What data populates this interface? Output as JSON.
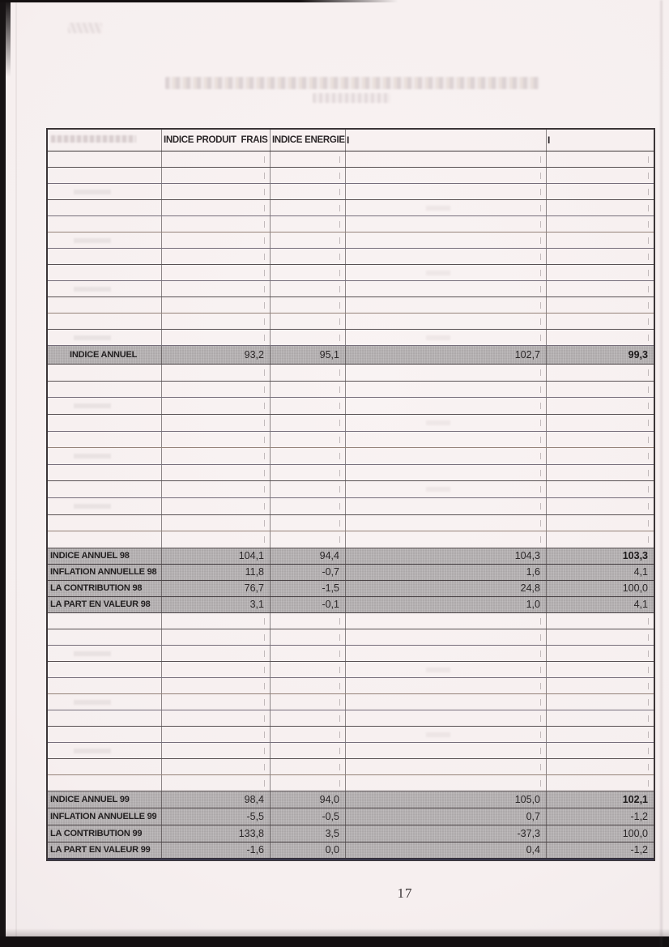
{
  "page": {
    "number": "17"
  },
  "colors": {
    "row_highlight": "#b5b1b2",
    "paper": "#f7f1f1",
    "grid_line": "#3b3537"
  },
  "table": {
    "headers": {
      "col1": "",
      "col2": "INDICE PRODUIT  FRAIS",
      "col3": "INDICE ENERGIE",
      "col4_mark": "I",
      "col5_mark": "I"
    },
    "empty_row_counts": {
      "section1": 12,
      "section2": 11,
      "section3": 11
    },
    "indice_annuel": {
      "label": "INDICE ANNUEL",
      "values": [
        "93,2",
        "95,1",
        "102,7",
        "99,3"
      ]
    },
    "block_98": [
      {
        "label": "INDICE ANNUEL 98",
        "values": [
          "104,1",
          "94,4",
          "104,3",
          "103,3"
        ]
      },
      {
        "label": "INFLATION ANNUELLE 98",
        "values": [
          "11,8",
          "-0,7",
          "1,6",
          "4,1"
        ]
      },
      {
        "label": "LA CONTRIBUTION 98",
        "values": [
          "76,7",
          "-1,5",
          "24,8",
          "100,0"
        ]
      },
      {
        "label": "LA PART EN VALEUR 98",
        "values": [
          "3,1",
          "-0,1",
          "1,0",
          "4,1"
        ]
      }
    ],
    "block_99": [
      {
        "label": "INDICE ANNUEL 99",
        "values": [
          "98,4",
          "94,0",
          "105,0",
          "102,1"
        ]
      },
      {
        "label": "INFLATION ANNUELLE 99",
        "values": [
          "-5,5",
          "-0,5",
          "0,7",
          "-1,2"
        ]
      },
      {
        "label": "LA CONTRIBUTION 99",
        "values": [
          "133,8",
          "3,5",
          "-37,3",
          "100,0"
        ]
      },
      {
        "label": "LA PART EN VALEUR 99",
        "values": [
          "-1,6",
          "0,0",
          "0,4",
          "-1,2"
        ]
      }
    ]
  }
}
